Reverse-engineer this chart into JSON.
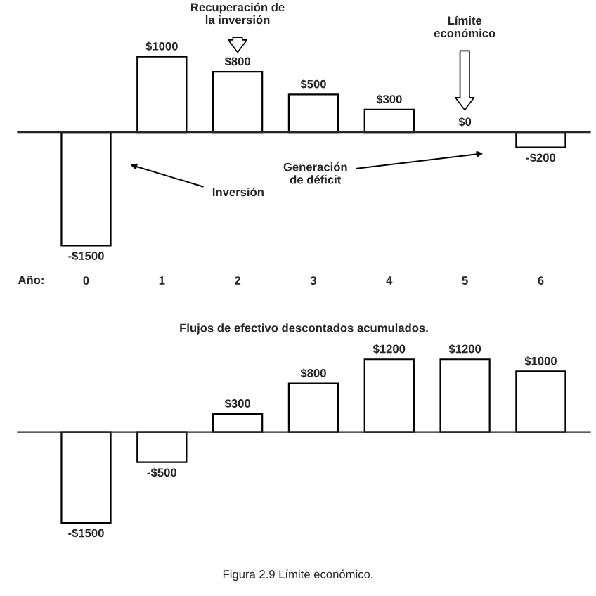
{
  "chart_data": [
    {
      "type": "bar",
      "xlabel": "Año:",
      "categories": [
        "0",
        "1",
        "2",
        "3",
        "4",
        "5",
        "6"
      ],
      "values": [
        -1500,
        1000,
        800,
        500,
        300,
        0,
        -200
      ],
      "color": "#ffffff",
      "value_labels": [
        "-$1500",
        "$1000",
        "$800",
        "$500",
        "$300",
        "$0",
        "-$200"
      ],
      "annotations": [
        "Recuperación de\nla inversión",
        "Límite\neconómico",
        "Inversión",
        "Generación\nde déficit"
      ]
    },
    {
      "type": "bar",
      "title": "Flujos de efectivo descontados acumulados.",
      "categories": [
        null,
        null,
        null,
        null,
        null,
        null,
        null
      ],
      "values": [
        -1500,
        -500,
        300,
        800,
        1200,
        1200,
        1000
      ],
      "color": "#ffffff",
      "value_labels": [
        "-$1500",
        "-$500",
        "$300",
        "$800",
        "$1200",
        "$1200",
        "$1000"
      ],
      "annotations": [
        "Figura 2.9 Límite económico."
      ]
    }
  ]
}
